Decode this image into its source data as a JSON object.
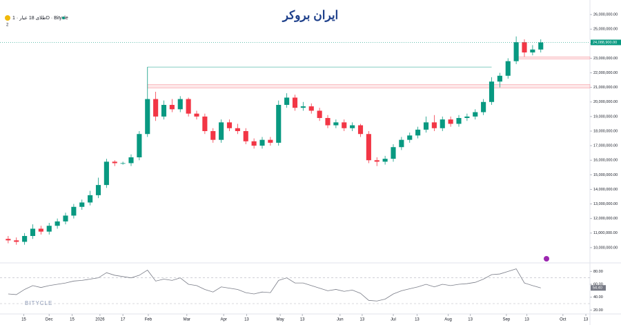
{
  "chart_data": {
    "type": "candlestick",
    "title": "طلای 18 عیار · 1D · Bitycle",
    "collapse_count": "2",
    "brand": "ایران بروکر",
    "watermark": "BITYCLE",
    "up_color": "#089981",
    "down_color": "#f23645",
    "x": [
      1,
      2,
      3,
      4,
      5,
      6,
      7,
      8,
      9,
      10,
      11,
      12,
      13,
      14,
      15,
      16,
      17,
      18,
      19,
      20,
      21,
      22,
      23,
      24,
      25,
      26,
      27,
      28,
      29,
      30,
      31,
      32,
      33,
      34,
      35,
      36,
      37,
      38,
      39,
      40,
      41,
      42,
      43,
      44,
      45,
      46,
      47,
      48,
      49,
      50,
      51,
      52,
      53,
      54,
      55,
      56,
      57,
      58,
      59,
      60,
      61,
      62,
      63,
      64,
      65,
      66
    ],
    "open": [
      10600000,
      10500000,
      10400000,
      10800000,
      11300000,
      11100000,
      11500000,
      11800000,
      12200000,
      12800000,
      13100000,
      13600000,
      14300000,
      15900000,
      15800000,
      15800000,
      16200000,
      17800000,
      20200000,
      19000000,
      19800000,
      19500000,
      20200000,
      19200000,
      19000000,
      18000000,
      17400000,
      18600000,
      18200000,
      18000000,
      17300000,
      17000000,
      17400000,
      17200000,
      19800000,
      20300000,
      19600000,
      19700000,
      19400000,
      18900000,
      18400000,
      18600000,
      18200000,
      18400000,
      17800000,
      16000000,
      15900000,
      16100000,
      16900000,
      17400000,
      17700000,
      18100000,
      18600000,
      18200000,
      18800000,
      18500000,
      18900000,
      19000000,
      19300000,
      20000000,
      21400000,
      21800000,
      22800000,
      24100000,
      23400000,
      23600000
    ],
    "high": [
      10800000,
      10700000,
      11000000,
      11600000,
      11500000,
      11700000,
      12000000,
      12400000,
      13000000,
      13300000,
      13900000,
      14800000,
      16100000,
      16000000,
      15900000,
      16400000,
      18000000,
      22400000,
      20700000,
      20100000,
      20200000,
      20400000,
      20300000,
      19400000,
      19200000,
      18200000,
      18800000,
      18800000,
      18500000,
      18200000,
      17500000,
      17600000,
      17600000,
      20100000,
      20600000,
      20500000,
      20000000,
      19900000,
      19600000,
      19100000,
      18800000,
      18800000,
      18600000,
      18500000,
      18000000,
      16200000,
      16300000,
      17100000,
      17600000,
      17900000,
      18300000,
      19000000,
      19100000,
      19000000,
      19000000,
      19100000,
      19200000,
      19500000,
      20200000,
      21700000,
      22000000,
      23000000,
      24500000,
      24300000,
      23900000,
      24300000
    ],
    "low": [
      10300000,
      10200000,
      10200000,
      10600000,
      10900000,
      10900000,
      11300000,
      11600000,
      12000000,
      12600000,
      12900000,
      13400000,
      14100000,
      15600000,
      15700000,
      15600000,
      16000000,
      17600000,
      18700000,
      18800000,
      19300000,
      19300000,
      19000000,
      18800000,
      17800000,
      17200000,
      17200000,
      18000000,
      17800000,
      17100000,
      16800000,
      16800000,
      17000000,
      17000000,
      19600000,
      19400000,
      19400000,
      19200000,
      18700000,
      18200000,
      18200000,
      18000000,
      18000000,
      17600000,
      15800000,
      15600000,
      15700000,
      15900000,
      16700000,
      17200000,
      17500000,
      17900000,
      18000000,
      18000000,
      18300000,
      18300000,
      18700000,
      18800000,
      19100000,
      19800000,
      21000000,
      21600000,
      22600000,
      23100000,
      23200000,
      23400000
    ],
    "close": [
      10500000,
      10400000,
      10800000,
      11300000,
      11100000,
      11500000,
      11800000,
      12200000,
      12800000,
      13100000,
      13600000,
      14300000,
      15900000,
      15800000,
      15800000,
      16200000,
      17800000,
      20200000,
      19000000,
      19800000,
      19500000,
      20200000,
      19200000,
      19000000,
      18000000,
      17400000,
      18600000,
      18200000,
      18000000,
      17300000,
      17000000,
      17400000,
      17200000,
      19800000,
      20300000,
      19600000,
      19700000,
      19400000,
      18900000,
      18400000,
      18600000,
      18200000,
      18400000,
      17800000,
      16000000,
      15900000,
      16100000,
      16900000,
      17400000,
      17700000,
      18100000,
      18600000,
      18200000,
      18800000,
      18500000,
      18900000,
      19000000,
      19300000,
      20000000,
      21400000,
      21800000,
      22800000,
      24100000,
      23400000,
      23600000,
      24088900
    ],
    "xlim": [
      0,
      72
    ],
    "xticks": [
      {
        "value": 2.9,
        "label": "15"
      },
      {
        "value": 6,
        "label": "Dec"
      },
      {
        "value": 8.8,
        "label": "15"
      },
      {
        "value": 12.2,
        "label": "2026"
      },
      {
        "value": 15,
        "label": "17"
      },
      {
        "value": 18.1,
        "label": "Feb"
      },
      {
        "value": 22.8,
        "label": "Mar"
      },
      {
        "value": 27.3,
        "label": "Apr"
      },
      {
        "value": 30.1,
        "label": "13"
      },
      {
        "value": 34.2,
        "label": "May"
      },
      {
        "value": 36.9,
        "label": "13"
      },
      {
        "value": 41.5,
        "label": "Jun"
      },
      {
        "value": 44.2,
        "label": "13"
      },
      {
        "value": 48,
        "label": "Jul"
      },
      {
        "value": 50.9,
        "label": "13"
      },
      {
        "value": 54.7,
        "label": "Aug"
      },
      {
        "value": 57.4,
        "label": "13"
      },
      {
        "value": 61.8,
        "label": "Sep"
      },
      {
        "value": 64.3,
        "label": "13"
      },
      {
        "value": 68.7,
        "label": "Oct"
      },
      {
        "value": 71.5,
        "label": "13"
      }
    ],
    "ylim": [
      9000000,
      27000000
    ],
    "yticks": [
      {
        "value": 10000000,
        "label": "10,000,000.00"
      },
      {
        "value": 11000000,
        "label": "11,000,000.00"
      },
      {
        "value": 12000000,
        "label": "12,000,000.00"
      },
      {
        "value": 13000000,
        "label": "13,000,000.00"
      },
      {
        "value": 14000000,
        "label": "14,000,000.00"
      },
      {
        "value": 15000000,
        "label": "15,000,000.00"
      },
      {
        "value": 16000000,
        "label": "16,000,000.00"
      },
      {
        "value": 17000000,
        "label": "17,000,000.00"
      },
      {
        "value": 18000000,
        "label": "18,000,000.00"
      },
      {
        "value": 19000000,
        "label": "19,000,000.00"
      },
      {
        "value": 20000000,
        "label": "20,000,000.00"
      },
      {
        "value": 21000000,
        "label": "21,000,000.00"
      },
      {
        "value": 22000000,
        "label": "22,000,000.00"
      },
      {
        "value": 23000000,
        "label": "23,000,000.00"
      },
      {
        "value": 24000000,
        "label": "24,000,000.00"
      },
      {
        "value": 25000000,
        "label": "25,000,000.00"
      },
      {
        "value": 26000000,
        "label": "26,000,000.00"
      }
    ],
    "last_price": {
      "value": 24088900,
      "label": "24,088,900.00",
      "color": "#089981"
    },
    "zones": [
      [
        20950000,
        21200000
      ],
      [
        22950000,
        23100000
      ]
    ],
    "level": 22400000,
    "rsi": {
      "color": "#787b86",
      "values": [
        45,
        44,
        52,
        58,
        55,
        58,
        60,
        62,
        65,
        66,
        68,
        70,
        78,
        74,
        72,
        70,
        74,
        82,
        65,
        68,
        66,
        70,
        60,
        58,
        52,
        48,
        56,
        54,
        52,
        47,
        45,
        48,
        47,
        66,
        70,
        62,
        62,
        58,
        54,
        50,
        52,
        49,
        51,
        46,
        35,
        34,
        37,
        45,
        50,
        53,
        56,
        60,
        56,
        60,
        58,
        60,
        61,
        63,
        68,
        75,
        76,
        80,
        84,
        62,
        58,
        54.4
      ],
      "ylim": [
        15,
        90
      ],
      "yticks": [
        {
          "value": 80,
          "label": "80.00"
        },
        {
          "value": 60,
          "label": "60.00"
        },
        {
          "value": 40,
          "label": "40.00"
        },
        {
          "value": 20,
          "label": "20.00"
        }
      ],
      "bands": [
        70,
        30
      ],
      "last": {
        "value": 54.4,
        "label": "54.40"
      }
    }
  }
}
